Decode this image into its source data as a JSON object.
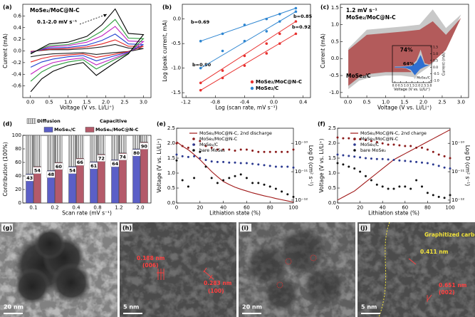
{
  "chart_data": [
    {
      "type": "cv-loop",
      "panel": "(a)",
      "title": "MoSe₂/MoC@N-C",
      "annotation": "0.1-2.0 mV s⁻¹",
      "xlabel": "Voltage (V vs. Li/Li⁺)",
      "ylabel": "Current (mA)",
      "x": [
        0.01,
        0.5,
        1.0,
        1.5,
        1.9,
        2.25,
        2.6,
        3.0,
        2.6,
        2.2,
        1.75,
        1.4,
        1.0,
        0.6,
        0.3,
        0.01
      ],
      "series": [
        {
          "color": "#222222",
          "values": [
            -0.01,
            0.02,
            0.02,
            0.04,
            0.07,
            0.11,
            0.05,
            0.04,
            -0.01,
            -0.03,
            -0.06,
            -0.03,
            -0.04,
            -0.05,
            -0.07,
            -0.1
          ]
        },
        {
          "color": "#e02020",
          "values": [
            -0.01,
            0.03,
            0.04,
            0.07,
            0.12,
            0.19,
            0.08,
            0.08,
            -0.01,
            -0.06,
            -0.11,
            -0.05,
            -0.07,
            -0.09,
            -0.13,
            -0.19
          ]
        },
        {
          "color": "#1e3fd0",
          "values": [
            -0.02,
            0.05,
            0.06,
            0.1,
            0.18,
            0.29,
            0.12,
            0.11,
            -0.02,
            -0.09,
            -0.17,
            -0.08,
            -0.1,
            -0.14,
            -0.19,
            -0.28
          ]
        },
        {
          "color": "#c020c0",
          "values": [
            -0.03,
            0.07,
            0.09,
            0.15,
            0.26,
            0.42,
            0.17,
            0.16,
            -0.03,
            -0.13,
            -0.24,
            -0.12,
            -0.15,
            -0.2,
            -0.28,
            -0.4
          ]
        },
        {
          "color": "#2a9a3a",
          "values": [
            -0.04,
            0.09,
            0.11,
            0.19,
            0.34,
            0.54,
            0.22,
            0.21,
            -0.04,
            -0.16,
            -0.31,
            -0.15,
            -0.19,
            -0.26,
            -0.36,
            -0.52
          ]
        },
        {
          "color": "#000000",
          "values": [
            -0.05,
            0.12,
            0.15,
            0.25,
            0.45,
            0.72,
            0.3,
            0.28,
            -0.05,
            -0.22,
            -0.42,
            -0.2,
            -0.25,
            -0.35,
            -0.48,
            -0.7
          ]
        }
      ],
      "xlim": [
        -0.2,
        3.2
      ],
      "xticks": [
        {
          "value": 0,
          "label": "0.0"
        },
        0.5,
        {
          "value": 1,
          "label": "1.0"
        },
        1.5,
        {
          "value": 2,
          "label": "2.0"
        },
        2.5,
        {
          "value": 3,
          "label": "3.0"
        }
      ],
      "ylim": [
        -0.8,
        0.8
      ],
      "yticks": [
        -0.6,
        -0.4,
        -0.2,
        {
          "value": 0,
          "label": "0.0"
        },
        0.2,
        0.4,
        0.6
      ]
    },
    {
      "type": "scatter-fit",
      "panel": "(b)",
      "xlabel": "Log (scan rate, mV s⁻¹)",
      "ylabel": "Log (peak current, mA)",
      "x": [
        -1,
        -0.7,
        -0.4,
        -0.1,
        0.08,
        0.3
      ],
      "series": [
        {
          "name": "MoSe₂/MoC@N-C",
          "color": "#e8312f",
          "annotation": "b=0.92",
          "values": [
            -1.3,
            -1.05,
            -0.75,
            -0.5,
            -0.3,
            -0.05
          ]
        },
        {
          "color": "#e8312f",
          "annotation": "b=0.90",
          "values": [
            -1.45,
            -1.2,
            -0.95,
            -0.7,
            -0.5,
            -0.3
          ]
        },
        {
          "name": "MoSe₂/C",
          "color": "#2f86d1",
          "annotation": "b=0.69",
          "values": [
            -0.45,
            -0.3,
            -0.12,
            0.0,
            0.1,
            0.22
          ]
        },
        {
          "color": "#2f86d1",
          "annotation": "b=0.85",
          "values": [
            -1.0,
            -0.65,
            -0.45,
            -0.25,
            -0.05,
            0.15
          ]
        }
      ],
      "xlim": [
        -1.25,
        0.5
      ],
      "xticks": [
        -1.2,
        -0.8,
        -0.4,
        {
          "value": 0,
          "label": "0.0"
        },
        0.4
      ],
      "ylim": [
        -1.6,
        0.3
      ],
      "yticks": [
        {
          "value": 0,
          "label": "0.0"
        },
        -0.5,
        {
          "value": -1,
          "label": "-1.0"
        },
        -1.5
      ]
    },
    {
      "type": "cv-area",
      "panel": "(c)",
      "labels": [
        "1.2 mV s⁻¹",
        "MoSe₂/MoC@N-C",
        "MoSe₂/C"
      ],
      "xlabel": "Voltage (V vs. Li/Li⁺)",
      "ylabel": "Current (mA)",
      "x": [
        0.01,
        0.5,
        1.0,
        1.5,
        1.9,
        2.25,
        2.6,
        3.0,
        2.6,
        2.2,
        1.75,
        1.4,
        1.0,
        0.6,
        0.3,
        0.01
      ],
      "series": [
        {
          "color": "#c8c8c8",
          "values": [
            0.3,
            0.85,
            0.9,
            0.95,
            1.0,
            1.45,
            0.9,
            1.3,
            0.3,
            -0.2,
            -0.55,
            -0.5,
            -0.5,
            -0.55,
            -0.65,
            -0.9
          ]
        },
        {
          "color": "#b35b5b",
          "annotation": "74%",
          "values": [
            0.25,
            0.7,
            0.75,
            0.8,
            0.85,
            1.1,
            0.7,
            1.2,
            0.25,
            -0.15,
            -0.4,
            -0.4,
            -0.4,
            -0.45,
            -0.55,
            -0.8
          ]
        }
      ],
      "xlim": [
        -0.2,
        3.2
      ],
      "xticks": [
        {
          "value": 0,
          "label": "0.0"
        },
        0.5,
        {
          "value": 1,
          "label": "1.0"
        },
        1.5,
        {
          "value": 2,
          "label": "2.0"
        },
        2.5,
        {
          "value": 3,
          "label": "3.0"
        }
      ],
      "ylim": [
        -1.15,
        1.6
      ],
      "yticks": [
        {
          "value": -1,
          "label": "-1.0"
        },
        -0.5,
        {
          "value": 0,
          "label": "0.0"
        },
        0.5,
        {
          "value": 1,
          "label": "1.0"
        },
        1.5
      ]
    },
    {
      "type": "cv-area",
      "yaxis_side": "right",
      "xlabel": "Voltage (V vs. Li/Li⁺)",
      "ylabel": "Current (mA)",
      "x": [
        0.01,
        0.5,
        1.0,
        1.5,
        1.9,
        2.25,
        2.6,
        3.0,
        2.6,
        2.2,
        1.75,
        1.4,
        1.0,
        0.6,
        0.3,
        0.01
      ],
      "series": [
        {
          "color": "#c8c8c8",
          "values": [
            0.05,
            0.05,
            0.08,
            0.15,
            0.5,
            1.3,
            0.3,
            0.2,
            0.05,
            -0.2,
            -0.9,
            -0.3,
            -0.1,
            -0.05,
            -0.05,
            -0.05
          ]
        },
        {
          "name": "MoSe₂/C",
          "color": "#2f6fd1",
          "annotation": "64%",
          "values": [
            0.03,
            0.03,
            0.05,
            0.1,
            0.35,
            0.9,
            0.2,
            0.15,
            0.03,
            -0.15,
            -0.6,
            -0.2,
            -0.07,
            -0.03,
            -0.03,
            -0.03
          ]
        }
      ],
      "xlim": [
        -0.2,
        3.2
      ],
      "xticks": [
        {
          "value": 0,
          "label": "0.0"
        },
        0.5,
        {
          "value": 1,
          "label": "1.0"
        },
        1.5,
        {
          "value": 2,
          "label": "2.0"
        },
        2.5,
        {
          "value": 3,
          "label": "3.0"
        }
      ],
      "ylim": [
        -1.15,
        1.6
      ],
      "yticks": [
        {
          "value": -1,
          "label": "-1.0"
        },
        -0.5,
        {
          "value": 0,
          "label": "0.0"
        },
        0.5,
        {
          "value": 1,
          "label": "1.0"
        },
        1.5
      ]
    },
    {
      "type": "stacked-bar",
      "panel": "(d)",
      "legend_title": "Capacitive",
      "xlabel": "Scan rate (mV s⁻¹)",
      "ylabel": "Contribution (100%)",
      "categories": [
        "0.1",
        "0.2",
        "0.4",
        "0.8",
        "1.2",
        "2.0"
      ],
      "series": [
        {
          "name": "MoSe₂/C",
          "color": "#5b5fc7",
          "stack": 0,
          "show_values": true,
          "values": [
            43,
            48,
            54,
            61,
            64,
            80
          ]
        },
        {
          "name": "Diffusion",
          "color": "#999999",
          "hatch": true,
          "stack": 0,
          "values": [
            57,
            52,
            46,
            39,
            36,
            20
          ]
        },
        {
          "name": "MoSe₂/MoC@N-C",
          "color": "#b45a6a",
          "stack": 1,
          "show_values": true,
          "values": [
            54,
            60,
            66,
            72,
            74,
            90
          ]
        },
        {
          "color": "#999999",
          "hatch": true,
          "stack": 1,
          "values": [
            46,
            40,
            34,
            28,
            26,
            10
          ]
        }
      ],
      "ylim": [
        0,
        100
      ],
      "yticks": [
        0,
        20,
        40,
        60,
        80,
        100
      ]
    },
    {
      "type": "dual-axis",
      "panel": "(e)",
      "xlabel": "Lithiation state (%)",
      "ylabel": "Voltage (V vs. Li/Li⁺)",
      "y2label": "Log D (cm² s⁻¹)",
      "x": [
        0,
        5,
        10,
        15,
        20,
        25,
        30,
        35,
        40,
        45,
        50,
        55,
        60,
        65,
        70,
        75,
        80,
        85,
        90,
        95,
        100
      ],
      "series": [
        {
          "name": "MoSe₂/MoC@N-C, 2nd discharge",
          "color": "#a01818",
          "style": "line",
          "values": [
            2.05,
            1.9,
            1.78,
            1.62,
            1.45,
            1.25,
            1.05,
            0.88,
            0.72,
            0.62,
            0.53,
            0.46,
            0.4,
            0.34,
            0.29,
            0.24,
            0.2,
            0.15,
            0.11,
            0.07,
            0.03
          ]
        },
        {
          "name": "MoSe₂/MoC@N-C",
          "color": "#8b1a1a",
          "style": "dot",
          "axis": "y2",
          "values": [
            1e-10,
            8e-11,
            7e-11,
            9e-11,
            1.2e-10,
            8e-11,
            7e-11,
            6e-11,
            6e-11,
            6e-11,
            5.5e-11,
            6e-11,
            6e-11,
            5.5e-11,
            5e-11,
            5e-11,
            5e-11,
            5e-11,
            5e-11,
            5e-11,
            6e-11
          ]
        },
        {
          "name": "MoSe₂/C",
          "color": "#2b3990",
          "style": "dot",
          "axis": "y2",
          "values": [
            4e-11,
            3.5e-11,
            3.3e-11,
            3.5e-11,
            3e-11,
            2.6e-11,
            2.3e-11,
            2.2e-11,
            2.2e-11,
            2.1e-11,
            2.1e-11,
            2e-11,
            2e-11,
            1.9e-11,
            1.8e-11,
            1.7e-11,
            1.6e-11,
            1.5e-11,
            1.5e-11,
            1.5e-11,
            1.4e-11
          ]
        },
        {
          "name": "bare MoSe₂",
          "color": "#111111",
          "style": "dot",
          "axis": "y2",
          "values": [
            2.5e-11,
            5e-12,
            3e-12,
            6e-12,
            5e-11,
            1.5e-11,
            6e-12,
            4e-12,
            5e-12,
            6e-12,
            7e-12,
            8e-12,
            6e-12,
            4e-12,
            4e-12,
            3.5e-12,
            3e-12,
            2.5e-12,
            2e-12,
            1.6e-12,
            1.3e-12
          ]
        }
      ],
      "xlim": [
        0,
        100
      ],
      "xticks": [
        0,
        20,
        40,
        60,
        80,
        100
      ],
      "ylim": [
        0,
        2.5
      ],
      "yticks": [
        {
          "value": 0,
          "label": "0.0"
        },
        0.5,
        {
          "value": 1,
          "label": "1.0"
        },
        1.5,
        {
          "value": 2,
          "label": "2.0"
        },
        2.5
      ],
      "y2log": true,
      "y2lim": [
        7.9e-13,
        3.4e-10
      ],
      "y2ticks": [
        {
          "value": 1e-12,
          "label": "10⁻¹²"
        },
        {
          "value": 1e-11,
          "label": "10⁻¹¹"
        },
        {
          "value": 1e-10,
          "label": "10⁻¹⁰"
        }
      ]
    },
    {
      "type": "dual-axis",
      "panel": "(f)",
      "xlabel": "Lithiation state (%)",
      "ylabel": "Voltage (V vs. Li/Li⁺)",
      "y2label": "Log D (cm² s⁻¹)",
      "x": [
        0,
        5,
        10,
        15,
        20,
        25,
        30,
        35,
        40,
        45,
        50,
        55,
        60,
        65,
        70,
        75,
        80,
        85,
        90,
        95,
        100
      ],
      "series": [
        {
          "name": "MoSe₂/MoC@N-C, 2nd charge",
          "color": "#a01818",
          "style": "line",
          "values": [
            0.1,
            0.2,
            0.3,
            0.4,
            0.55,
            0.7,
            0.85,
            1.0,
            1.15,
            1.3,
            1.45,
            1.55,
            1.65,
            1.75,
            1.85,
            1.95,
            2.05,
            2.15,
            2.25,
            2.35,
            2.45
          ]
        },
        {
          "name": "MoSe₂/MoC@N-C",
          "color": "#8b1a1a",
          "style": "dot",
          "axis": "y2",
          "values": [
            1.6e-10,
            1.5e-10,
            1.5e-10,
            1.4e-10,
            1.4e-10,
            1.3e-10,
            1.2e-10,
            1.1e-10,
            1e-10,
            9e-11,
            9e-11,
            8.5e-11,
            8e-11,
            8e-11,
            7e-11,
            7e-11,
            6e-11,
            5e-11,
            4e-11,
            3.5e-11,
            3e-11
          ]
        },
        {
          "name": "MoSe₂/C",
          "color": "#2b3990",
          "style": "dot",
          "axis": "y2",
          "values": [
            4e-11,
            3.8e-11,
            3.6e-11,
            3.4e-11,
            3.2e-11,
            3e-11,
            2.9e-11,
            2.8e-11,
            2.8e-11,
            2.7e-11,
            2.6e-11,
            2.5e-11,
            2.4e-11,
            2.3e-11,
            2.2e-11,
            2.1e-11,
            2e-11,
            1.8e-11,
            1.6e-11,
            1.4e-11,
            1.3e-11
          ]
        },
        {
          "name": "bare MoSe₂",
          "color": "#111111",
          "style": "dot",
          "axis": "y2",
          "values": [
            2e-11,
            1.8e-11,
            1.5e-11,
            1.3e-11,
            1e-11,
            7e-12,
            5e-12,
            3.5e-12,
            3e-12,
            2.5e-12,
            2.5e-12,
            3e-12,
            3e-12,
            2.5e-12,
            5e-12,
            3e-12,
            1.8e-12,
            1.5e-12,
            1.3e-12,
            1.2e-12,
            1.5e-12
          ]
        }
      ],
      "xlim": [
        0,
        100
      ],
      "xticks": [
        0,
        20,
        40,
        60,
        80,
        100
      ],
      "ylim": [
        0,
        2.5
      ],
      "yticks": [
        {
          "value": 0,
          "label": "0.0"
        },
        0.5,
        {
          "value": 1,
          "label": "1.0"
        },
        1.5,
        {
          "value": 2,
          "label": "2.0"
        },
        2.5
      ],
      "y2log": true,
      "y2lim": [
        7.9e-13,
        3.4e-10
      ],
      "y2ticks": [
        {
          "value": 1e-12,
          "label": "10⁻¹²"
        },
        {
          "value": 1e-11,
          "label": "10⁻¹¹"
        },
        {
          "value": 1e-10,
          "label": "10⁻¹⁰"
        }
      ]
    }
  ],
  "images": [
    {
      "panel": "(g)",
      "scale_bar": "20 nm"
    },
    {
      "panel": "(h)",
      "scale_bar": "5 nm",
      "annotations": [
        "0.188 nm",
        "(006)",
        "0.283 nm",
        "(100)"
      ]
    },
    {
      "panel": "(i)",
      "scale_bar": "20 nm"
    },
    {
      "panel": "(j)",
      "scale_bar": "5 nm",
      "annotations": [
        "Graphitized carbon",
        "0.411 nm",
        "0.651 nm",
        "(002)"
      ]
    }
  ]
}
